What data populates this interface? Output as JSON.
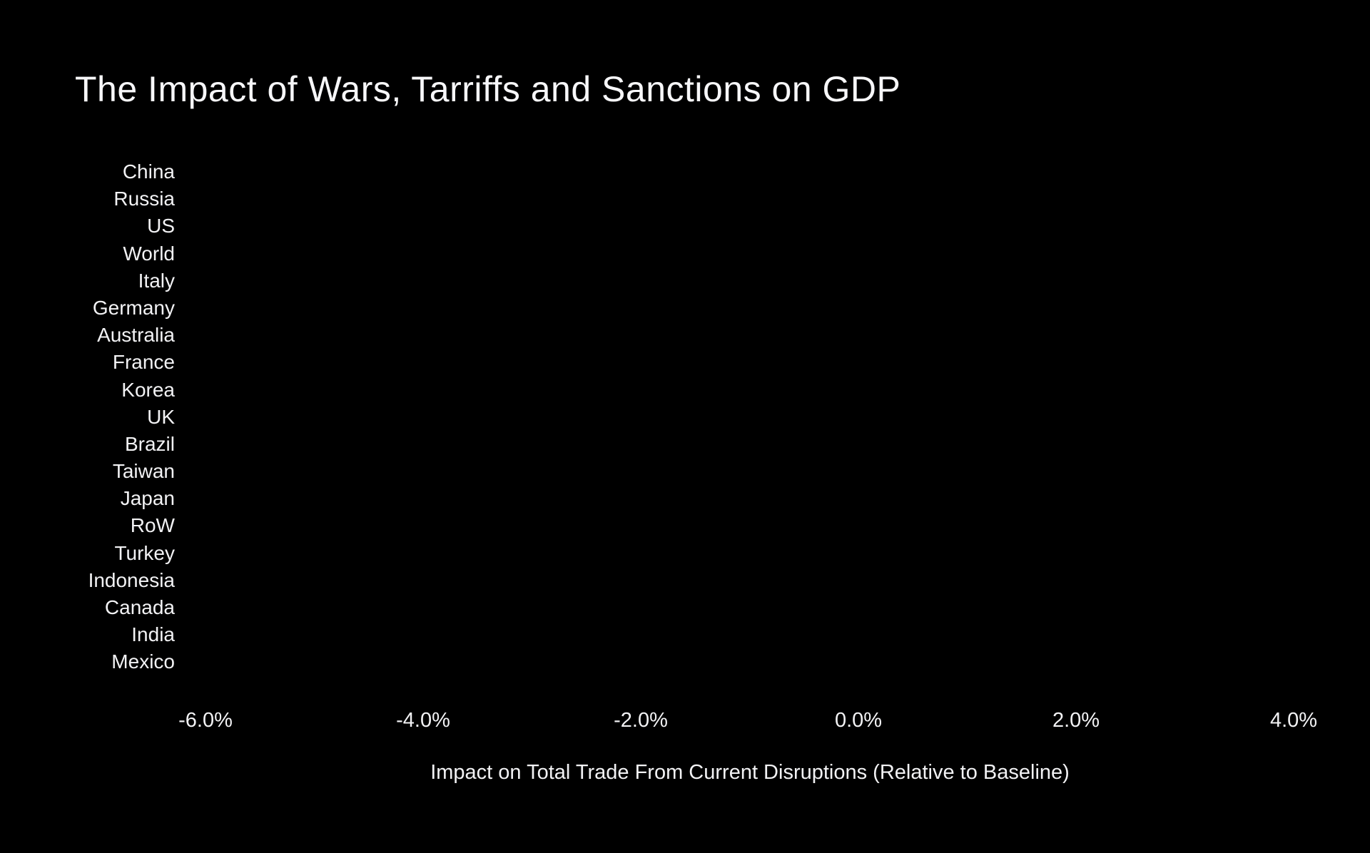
{
  "chart_data": {
    "type": "bar",
    "orientation": "horizontal",
    "title": "The Impact of Wars, Tarriffs and Sanctions on GDP",
    "xlabel": "Impact on Total Trade From Current Disruptions (Relative to Baseline)",
    "ylabel": "",
    "categories": [
      "China",
      "Russia",
      "US",
      "World",
      "Italy",
      "Germany",
      "Australia",
      "France",
      "Korea",
      "UK",
      "Brazil",
      "Taiwan",
      "Japan",
      "RoW",
      "Turkey",
      "Indonesia",
      "Canada",
      "India",
      "Mexico"
    ],
    "xticks": [
      "-6.0%",
      "-4.0%",
      "-2.0%",
      "0.0%",
      "2.0%",
      "4.0%"
    ],
    "xlim_percent": [
      -6.0,
      4.0
    ],
    "values": null,
    "bars_visible": false,
    "grid": false,
    "legend": null,
    "colors": {
      "background": "#000000",
      "text": "#f2f2f4"
    }
  }
}
